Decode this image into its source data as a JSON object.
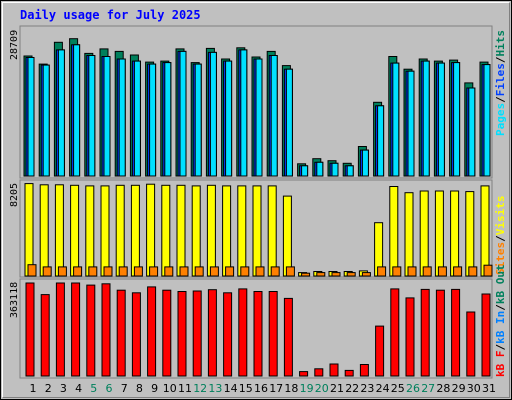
{
  "title": "Daily usage for July 2025",
  "colors": {
    "hits": "#00805c",
    "files": "#0040ff",
    "pages": "#00e0ff",
    "visits": "#ffff00",
    "sites": "#ff8000",
    "kbytes": "#ff0000",
    "kbytes_label_blue": "#0080ff",
    "kbytes_in": "#0000ff",
    "weekend_tick": "#00805c",
    "weekday_tick": "#000000"
  },
  "chart_data": [
    {
      "type": "bar",
      "name": "hits-files-pages",
      "categories": [
        "1",
        "2",
        "3",
        "4",
        "5",
        "6",
        "7",
        "8",
        "9",
        "10",
        "11",
        "12",
        "13",
        "14",
        "15",
        "16",
        "17",
        "18",
        "19",
        "20",
        "21",
        "22",
        "23",
        "24",
        "25",
        "26",
        "27",
        "28",
        "29",
        "30",
        "31"
      ],
      "ymax_label": "28709",
      "ylim": [
        0,
        28709
      ],
      "legend": [
        "Pages",
        "/",
        "Files",
        "/",
        "Hits"
      ],
      "series": [
        {
          "name": "Hits",
          "values": [
            23600,
            22000,
            26300,
            27000,
            24100,
            25000,
            24500,
            23800,
            22400,
            22600,
            25000,
            22300,
            25100,
            23000,
            25200,
            23400,
            24500,
            21700,
            2400,
            3400,
            3000,
            2500,
            5800,
            14500,
            23500,
            21000,
            23000,
            22600,
            22800,
            18300,
            22400
          ]
        },
        {
          "name": "Files",
          "values": [
            23300,
            21800,
            24800,
            25800,
            23700,
            23500,
            23000,
            22600,
            22000,
            22300,
            24500,
            22000,
            24300,
            22600,
            24800,
            23000,
            23700,
            21000,
            2000,
            2700,
            2500,
            2000,
            5100,
            13800,
            22200,
            20600,
            22600,
            22200,
            22300,
            17300,
            21900
          ]
        },
        {
          "name": "Pages",
          "values": [
            23300,
            21800,
            24800,
            25800,
            23700,
            23500,
            23000,
            22600,
            22000,
            22300,
            24500,
            22000,
            24300,
            22600,
            24800,
            23000,
            23700,
            21000,
            2000,
            2700,
            2500,
            2000,
            5100,
            13800,
            22200,
            20600,
            22600,
            22200,
            22300,
            17300,
            21900
          ]
        }
      ]
    },
    {
      "type": "bar",
      "name": "visits-sites",
      "categories": [
        "1",
        "2",
        "3",
        "4",
        "5",
        "6",
        "7",
        "8",
        "9",
        "10",
        "11",
        "12",
        "13",
        "14",
        "15",
        "16",
        "17",
        "18",
        "19",
        "20",
        "21",
        "22",
        "23",
        "24",
        "25",
        "26",
        "27",
        "28",
        "29",
        "30",
        "31"
      ],
      "ymax_label": "8205",
      "ylim": [
        0,
        8205
      ],
      "legend": [
        "Sites",
        "/",
        "Visits"
      ],
      "series": [
        {
          "name": "Visits",
          "values": [
            8150,
            8050,
            8050,
            8000,
            7950,
            7950,
            8000,
            8000,
            8100,
            8000,
            8000,
            7950,
            8000,
            7950,
            7950,
            7950,
            7950,
            7050,
            300,
            400,
            400,
            400,
            450,
            4700,
            7900,
            7350,
            7500,
            7500,
            7500,
            7450,
            7950
          ]
        },
        {
          "name": "Sites",
          "values": [
            1000,
            800,
            800,
            800,
            800,
            800,
            800,
            800,
            800,
            800,
            800,
            800,
            800,
            800,
            800,
            800,
            800,
            800,
            250,
            300,
            300,
            300,
            300,
            800,
            800,
            800,
            800,
            800,
            800,
            800,
            950
          ]
        }
      ]
    },
    {
      "type": "bar",
      "name": "kbytes",
      "categories": [
        "1",
        "2",
        "3",
        "4",
        "5",
        "6",
        "7",
        "8",
        "9",
        "10",
        "11",
        "12",
        "13",
        "14",
        "15",
        "16",
        "17",
        "18",
        "19",
        "20",
        "21",
        "22",
        "23",
        "24",
        "25",
        "26",
        "27",
        "28",
        "29",
        "30",
        "31"
      ],
      "ymax_label": "363118",
      "ylim": [
        0,
        363118
      ],
      "legend": [
        "kB F",
        "/",
        "kB In",
        "/",
        "kB Out"
      ],
      "series": [
        {
          "name": "kB F",
          "values": [
            363118,
            318000,
            363118,
            363118,
            355000,
            360000,
            335000,
            325000,
            348000,
            335000,
            330000,
            332000,
            337000,
            325000,
            340000,
            330000,
            330000,
            303000,
            17000,
            28000,
            47000,
            22000,
            45000,
            195000,
            340000,
            305000,
            338000,
            335000,
            338000,
            250000,
            320000
          ]
        }
      ]
    }
  ]
}
